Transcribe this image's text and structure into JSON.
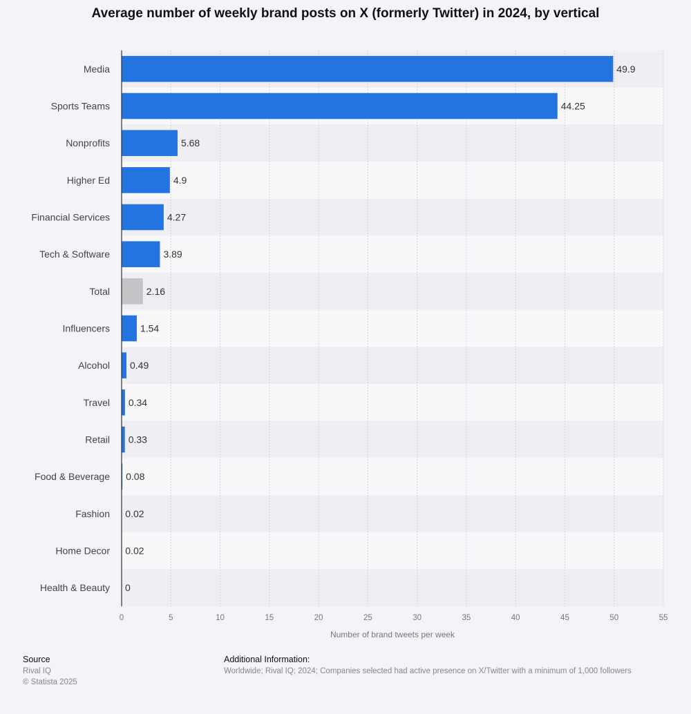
{
  "title": "Average number of weekly brand posts on X (formerly Twitter) in 2024, by vertical",
  "colors": {
    "bar": "#2374e1",
    "highlight": "#c4c4c7",
    "axis": "#333333",
    "grid": "#d3d3d8"
  },
  "chart_data": {
    "type": "bar",
    "orientation": "horizontal",
    "title": "Average number of weekly brand posts on X (formerly Twitter) in 2024, by vertical",
    "xlabel": "Number of brand tweets per week",
    "ylabel": "",
    "xlim": [
      0,
      55
    ],
    "xticks": [
      0,
      5,
      10,
      15,
      20,
      25,
      30,
      35,
      40,
      45,
      50,
      55
    ],
    "grid": true,
    "categories": [
      "Media",
      "Sports Teams",
      "Nonprofits",
      "Higher Ed",
      "Financial Services",
      "Tech & Software",
      "Total",
      "Influencers",
      "Alcohol",
      "Travel",
      "Retail",
      "Food & Beverage",
      "Fashion",
      "Home Decor",
      "Health & Beauty"
    ],
    "values": [
      49.9,
      44.25,
      5.68,
      4.9,
      4.27,
      3.89,
      2.16,
      1.54,
      0.49,
      0.34,
      0.33,
      0.08,
      0.02,
      0.02,
      0
    ],
    "value_labels": [
      "49.9",
      "44.25",
      "5.68",
      "4.9",
      "4.27",
      "3.89",
      "2.16",
      "1.54",
      "0.49",
      "0.34",
      "0.33",
      "0.08",
      "0.02",
      "0.02",
      "0"
    ],
    "highlighted": [
      "Total"
    ]
  },
  "footer": {
    "source_heading": "Source",
    "source_name": "Rival IQ",
    "copyright": "© Statista 2025",
    "additional_heading": "Additional Information:",
    "additional_text": "Worldwide; Rival IQ; 2024; Companies selected had active presence on X/Twitter with a minimum of 1,000 followers"
  }
}
